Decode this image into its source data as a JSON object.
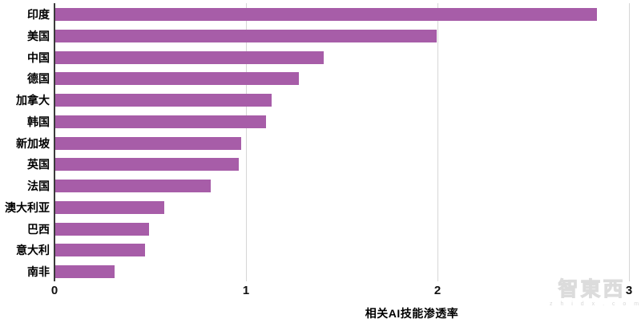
{
  "chart_data": {
    "type": "bar",
    "orientation": "horizontal",
    "title": "",
    "xlabel": "相关AI技能渗透率",
    "ylabel": "",
    "categories": [
      "印度",
      "美国",
      "中国",
      "德国",
      "加拿大",
      "韩国",
      "新加坡",
      "英国",
      "法国",
      "澳大利亚",
      "巴西",
      "意大利",
      "南非"
    ],
    "values": [
      2.83,
      1.99,
      1.4,
      1.27,
      1.13,
      1.1,
      0.97,
      0.96,
      0.81,
      0.57,
      0.49,
      0.47,
      0.31
    ],
    "xlim": [
      0,
      3
    ],
    "x_ticks": [
      "0",
      "1",
      "2",
      "3"
    ],
    "grid": true,
    "legend": false,
    "bar_color": "#a75da8",
    "axis_line_color": "#3b3b3b",
    "gridline_color": "#d6d6d6"
  },
  "watermark": {
    "logo": "智東西",
    "caption": "z h i d x . c o m"
  }
}
